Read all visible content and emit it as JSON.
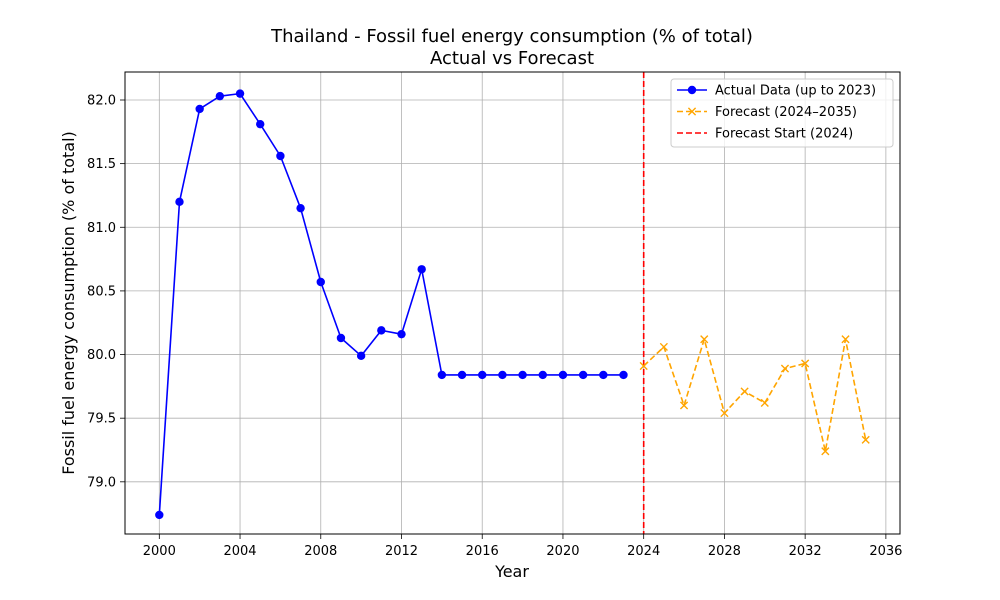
{
  "chart_data": {
    "type": "line",
    "title": "Thailand - Fossil fuel energy consumption (% of total)",
    "subtitle": "Actual vs Forecast",
    "xlabel": "Year",
    "ylabel": "Fossil fuel energy consumption (% of total)",
    "xlim": [
      1998.3,
      2036.7
    ],
    "ylim": [
      78.59,
      82.22
    ],
    "xticks": [
      2000,
      2004,
      2008,
      2012,
      2016,
      2020,
      2024,
      2028,
      2032,
      2036
    ],
    "yticks": [
      79.0,
      79.5,
      80.0,
      80.5,
      81.0,
      81.5,
      82.0
    ],
    "grid": true,
    "legend_position": "top-right",
    "series": [
      {
        "name": "Actual Data (up to 2023)",
        "color": "#0000ff",
        "line_style": "solid",
        "marker": "circle",
        "x": [
          2000,
          2001,
          2002,
          2003,
          2004,
          2005,
          2006,
          2007,
          2008,
          2009,
          2010,
          2011,
          2012,
          2013,
          2014,
          2015,
          2016,
          2017,
          2018,
          2019,
          2020,
          2021,
          2022,
          2023
        ],
        "y": [
          78.74,
          81.2,
          81.93,
          82.03,
          82.05,
          81.81,
          81.56,
          81.15,
          80.57,
          80.13,
          79.99,
          80.19,
          80.16,
          80.67,
          79.84,
          79.84,
          79.84,
          79.84,
          79.84,
          79.84,
          79.84,
          79.84,
          79.84,
          79.84
        ]
      },
      {
        "name": "Forecast (2024–2035)",
        "color": "#ffa500",
        "line_style": "dashed",
        "marker": "x",
        "x": [
          2024,
          2025,
          2026,
          2027,
          2028,
          2029,
          2030,
          2031,
          2032,
          2033,
          2034,
          2035
        ],
        "y": [
          79.91,
          80.06,
          79.6,
          80.12,
          79.54,
          79.71,
          79.62,
          79.89,
          79.93,
          79.24,
          80.12,
          79.33
        ]
      }
    ],
    "annotations": [
      {
        "name": "Forecast Start (2024)",
        "type": "vertical-line",
        "x": 2024,
        "color": "#ff0000",
        "line_style": "dashed"
      }
    ]
  }
}
